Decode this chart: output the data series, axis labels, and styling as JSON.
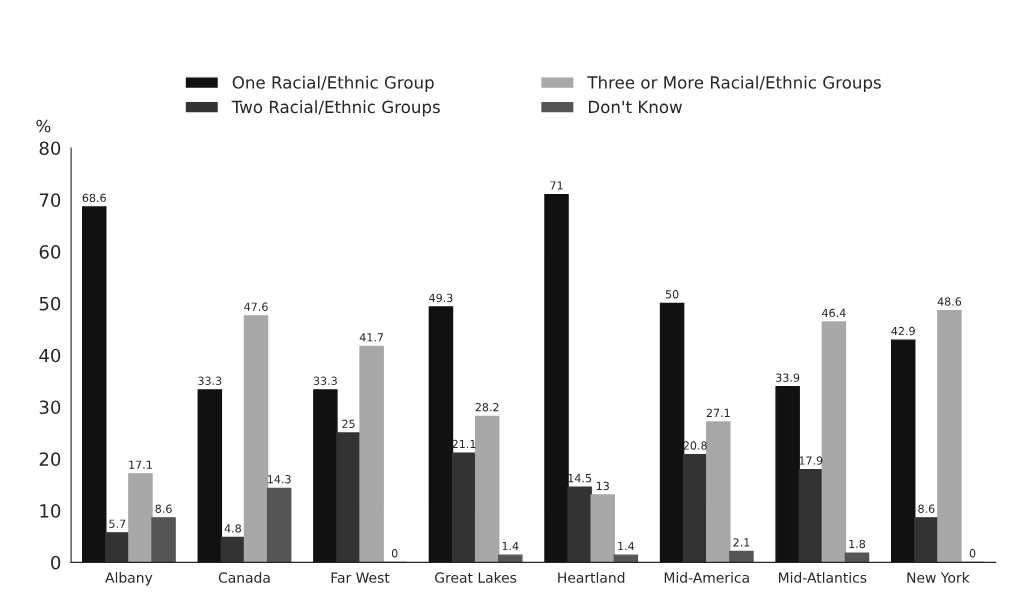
{
  "chart_data": {
    "type": "bar",
    "ylabel": "%",
    "categories": [
      "Albany",
      "Canada",
      "Far West",
      "Great Lakes",
      "Heartland",
      "Mid-America",
      "Mid-Atlantics",
      "New York"
    ],
    "series": [
      {
        "name": "One Racial/Ethnic Group",
        "color": "#111111",
        "values": [
          68.6,
          33.3,
          33.3,
          49.3,
          71,
          50,
          33.9,
          42.9
        ]
      },
      {
        "name": "Two Racial/Ethnic Groups",
        "color": "#333333",
        "values": [
          5.7,
          4.8,
          25,
          21.1,
          14.5,
          20.8,
          17.9,
          8.6
        ]
      },
      {
        "name": "Three or More Racial/Ethnic Groups",
        "color": "#a8a8a8",
        "values": [
          17.1,
          47.6,
          41.7,
          28.2,
          13,
          27.1,
          46.4,
          48.6
        ]
      },
      {
        "name": "Don't Know",
        "color": "#555555",
        "values": [
          8.6,
          14.3,
          0,
          1.4,
          1.4,
          2.1,
          1.8,
          0
        ]
      }
    ],
    "ylim": [
      0,
      80
    ],
    "yticks": [
      0,
      10,
      20,
      30,
      40,
      50,
      60,
      70,
      80
    ],
    "data_labels": true,
    "grid": false,
    "legend": "top"
  }
}
